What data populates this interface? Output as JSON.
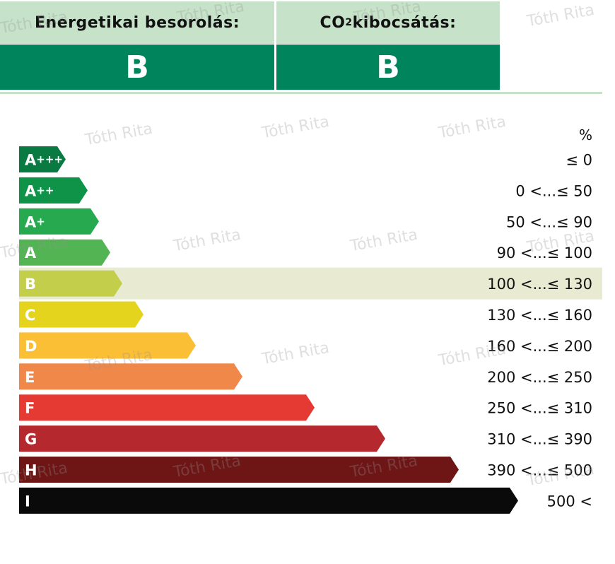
{
  "header": {
    "energy_label": "Energetikai besorolás:",
    "co2_label_pre": "CO",
    "co2_label_sub": "2",
    "co2_label_post": " kibocsátás:",
    "energy_value": "B",
    "co2_value": "B"
  },
  "watermark": "Tóth Rita",
  "chart_data": {
    "type": "bar",
    "unit_label": "%",
    "highlighted": "B",
    "categories": [
      {
        "letter": "A",
        "sup": "+++",
        "range": "≤ 0",
        "color": "#0a7a43"
      },
      {
        "letter": "A",
        "sup": "++",
        "range": "0 <...≤ 50",
        "color": "#0f9348"
      },
      {
        "letter": "A",
        "sup": "+",
        "range": "50 <...≤ 90",
        "color": "#27a94f"
      },
      {
        "letter": "A",
        "sup": "",
        "range": "90 <...≤ 100",
        "color": "#52b452"
      },
      {
        "letter": "B",
        "sup": "",
        "range": "100 <...≤ 130",
        "color": "#c3cf4a"
      },
      {
        "letter": "C",
        "sup": "",
        "range": "130 <...≤ 160",
        "color": "#e4d41e"
      },
      {
        "letter": "D",
        "sup": "",
        "range": "160 <...≤ 200",
        "color": "#fabf35"
      },
      {
        "letter": "E",
        "sup": "",
        "range": "200 <...≤ 250",
        "color": "#ef8848"
      },
      {
        "letter": "F",
        "sup": "",
        "range": "250 <...≤ 310",
        "color": "#e43a33"
      },
      {
        "letter": "G",
        "sup": "",
        "range": "310 <...≤ 390",
        "color": "#b5292e"
      },
      {
        "letter": "H",
        "sup": "",
        "range": "390 <...≤ 500",
        "color": "#6e1516"
      },
      {
        "letter": "I",
        "sup": "",
        "range": "500 <",
        "color": "#0a0a0a"
      }
    ],
    "highlight_color": "#e8ebd2"
  }
}
